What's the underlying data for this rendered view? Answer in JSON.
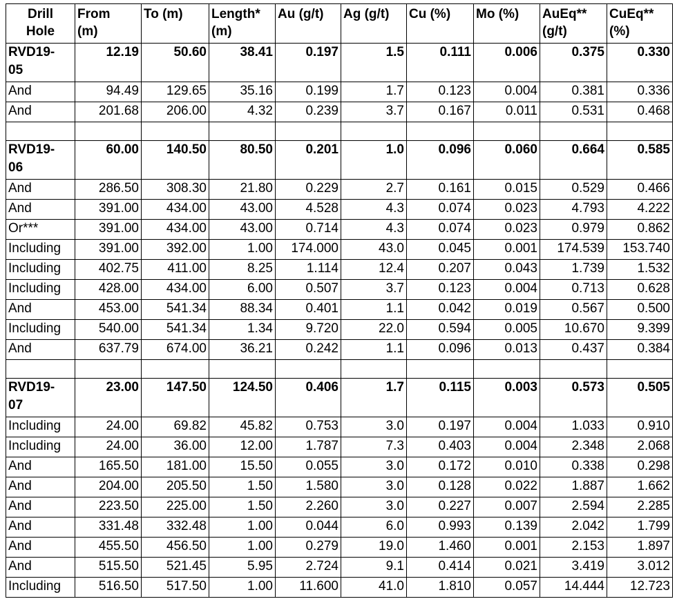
{
  "table": {
    "header": [
      "Drill\nHole",
      "From\n(m)",
      "To (m)",
      "Length*\n(m)",
      "Au (g/t)",
      "Ag (g/t)",
      "Cu (%)",
      "Mo (%)",
      "AuEq**\n(g/t)",
      "CuEq**\n(%)"
    ],
    "groups": [
      {
        "rows": [
          [
            "RVD19-\n05",
            "12.19",
            "50.60",
            "38.41",
            "0.197",
            "1.5",
            "0.111",
            "0.006",
            "0.375",
            "0.330"
          ],
          [
            "And",
            "94.49",
            "129.65",
            "35.16",
            "0.199",
            "1.7",
            "0.123",
            "0.004",
            "0.381",
            "0.336"
          ],
          [
            "And",
            "201.68",
            "206.00",
            "4.32",
            "0.239",
            "3.7",
            "0.167",
            "0.011",
            "0.531",
            "0.468"
          ]
        ]
      },
      {
        "rows": [
          [
            "RVD19-\n06",
            "60.00",
            "140.50",
            "80.50",
            "0.201",
            "1.0",
            "0.096",
            "0.060",
            "0.664",
            "0.585"
          ],
          [
            "And",
            "286.50",
            "308.30",
            "21.80",
            "0.229",
            "2.7",
            "0.161",
            "0.015",
            "0.529",
            "0.466"
          ],
          [
            "And",
            "391.00",
            "434.00",
            "43.00",
            "4.528",
            "4.3",
            "0.074",
            "0.023",
            "4.793",
            "4.222"
          ],
          [
            "Or***",
            "391.00",
            "434.00",
            "43.00",
            "0.714",
            "4.3",
            "0.074",
            "0.023",
            "0.979",
            "0.862"
          ],
          [
            "Including",
            "391.00",
            "392.00",
            "1.00",
            "174.000",
            "43.0",
            "0.045",
            "0.001",
            "174.539",
            "153.740"
          ],
          [
            "Including",
            "402.75",
            "411.00",
            "8.25",
            "1.114",
            "12.4",
            "0.207",
            "0.043",
            "1.739",
            "1.532"
          ],
          [
            "Including",
            "428.00",
            "434.00",
            "6.00",
            "0.507",
            "3.7",
            "0.123",
            "0.004",
            "0.713",
            "0.628"
          ],
          [
            "And",
            "453.00",
            "541.34",
            "88.34",
            "0.401",
            "1.1",
            "0.042",
            "0.019",
            "0.567",
            "0.500"
          ],
          [
            "Including",
            "540.00",
            "541.34",
            "1.34",
            "9.720",
            "22.0",
            "0.594",
            "0.005",
            "10.670",
            "9.399"
          ],
          [
            "And",
            "637.79",
            "674.00",
            "36.21",
            "0.242",
            "1.1",
            "0.096",
            "0.013",
            "0.437",
            "0.384"
          ]
        ]
      },
      {
        "rows": [
          [
            "RVD19-\n07",
            "23.00",
            "147.50",
            "124.50",
            "0.406",
            "1.7",
            "0.115",
            "0.003",
            "0.573",
            "0.505"
          ],
          [
            "Including",
            "24.00",
            "69.82",
            "45.82",
            "0.753",
            "3.0",
            "0.197",
            "0.004",
            "1.033",
            "0.910"
          ],
          [
            "Including",
            "24.00",
            "36.00",
            "12.00",
            "1.787",
            "7.3",
            "0.403",
            "0.004",
            "2.348",
            "2.068"
          ],
          [
            "And",
            "165.50",
            "181.00",
            "15.50",
            "0.055",
            "3.0",
            "0.172",
            "0.010",
            "0.338",
            "0.298"
          ],
          [
            "And",
            "204.00",
            "205.50",
            "1.50",
            "1.580",
            "3.0",
            "0.128",
            "0.022",
            "1.887",
            "1.662"
          ],
          [
            "And",
            "223.50",
            "225.00",
            "1.50",
            "2.260",
            "3.0",
            "0.227",
            "0.007",
            "2.594",
            "2.285"
          ],
          [
            "And",
            "331.48",
            "332.48",
            "1.00",
            "0.044",
            "6.0",
            "0.993",
            "0.139",
            "2.042",
            "1.799"
          ],
          [
            "And",
            "455.50",
            "456.50",
            "1.00",
            "0.279",
            "19.0",
            "1.460",
            "0.001",
            "2.153",
            "1.897"
          ],
          [
            "And",
            "515.50",
            "521.45",
            "5.95",
            "2.724",
            "9.1",
            "0.414",
            "0.021",
            "3.419",
            "3.012"
          ],
          [
            "Including",
            "516.50",
            "517.50",
            "1.00",
            "11.600",
            "41.0",
            "1.810",
            "0.057",
            "14.444",
            "12.723"
          ]
        ]
      }
    ]
  }
}
